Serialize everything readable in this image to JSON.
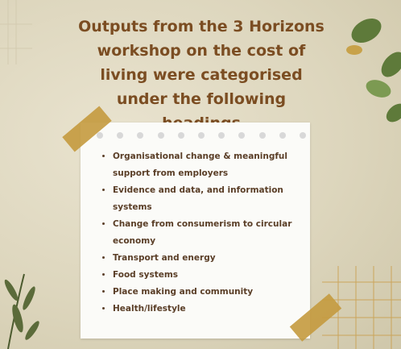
{
  "title": "Outputs from the 3 Horizons workshop on the cost of living were categorised under the following headings",
  "items": [
    "Organisational change & meaningful support from employers",
    "Evidence and data, and information systems",
    "Change from consumerism to circular economy",
    "Transport and energy",
    "Food systems",
    "Place making and community",
    "Health/lifestyle"
  ]
}
